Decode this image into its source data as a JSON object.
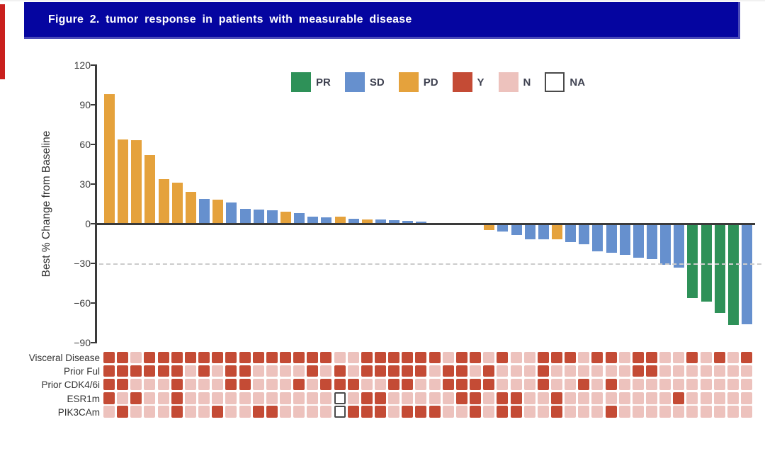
{
  "figure_title": "Figure 2. tumor response in patients with measurable disease",
  "colors": {
    "PR": "#2e9158",
    "SD": "#6690ce",
    "PD": "#e5a23c",
    "Y": "#c44b35",
    "N": "#edc2bd",
    "NA": "#ffffff",
    "na_border": "#4a4a4a",
    "title_bar": "#0505a0",
    "red_strip": "#c9201d"
  },
  "legend": {
    "items": [
      {
        "label": "PR",
        "color_key": "PR"
      },
      {
        "label": "SD",
        "color_key": "SD"
      },
      {
        "label": "PD",
        "color_key": "PD"
      },
      {
        "label": "Y",
        "color_key": "Y"
      },
      {
        "label": "N",
        "color_key": "N"
      },
      {
        "label": "NA",
        "color_key": "NA"
      }
    ]
  },
  "chart_data": {
    "type": "bar",
    "title": "Figure 2. tumor response in patients with measurable disease",
    "xlabel": "",
    "ylabel": "Best % Change from Baseline",
    "ylim": [
      -90,
      120
    ],
    "yticks": [
      120,
      90,
      60,
      30,
      0,
      -30,
      -60,
      -90
    ],
    "ytick_labels": [
      "120",
      "90",
      "60",
      "30",
      "0",
      "−30",
      "−60",
      "−90"
    ],
    "grid": false,
    "legend_position": "top-center",
    "reference_lines": {
      "solid_at": 0,
      "dashed_at": -30
    },
    "bars": {
      "count": 48,
      "values": [
        98,
        64,
        63,
        52,
        34,
        31,
        24,
        18.5,
        18,
        16,
        11,
        10.5,
        10,
        9,
        8,
        5.5,
        5,
        5.5,
        3.5,
        3,
        3,
        2.5,
        2,
        1.5,
        0,
        0,
        0,
        0,
        -4,
        -5,
        -7.5,
        -11,
        -11,
        -11,
        -13,
        -14.5,
        -20,
        -21,
        -22.5,
        -25,
        -26,
        -30.5,
        -32.5,
        -55.5,
        -58,
        -66.5,
        -76,
        -75
      ],
      "responses": [
        "PD",
        "PD",
        "PD",
        "PD",
        "PD",
        "PD",
        "PD",
        "SD",
        "PD",
        "SD",
        "SD",
        "SD",
        "SD",
        "PD",
        "SD",
        "SD",
        "SD",
        "PD",
        "SD",
        "PD",
        "SD",
        "SD",
        "SD",
        "SD",
        "SD",
        "SD",
        "SD",
        "SD",
        "PD",
        "SD",
        "SD",
        "SD",
        "SD",
        "PD",
        "SD",
        "SD",
        "SD",
        "SD",
        "SD",
        "SD",
        "SD",
        "SD",
        "SD",
        "PR",
        "PR",
        "PR",
        "PR",
        "SD"
      ]
    },
    "heatmap": {
      "cell_values_meaning": {
        "Y": "yes",
        "N": "no",
        "NA": "not available"
      },
      "rows": [
        {
          "label": "Visceral Disease",
          "values": [
            "Y",
            "Y",
            "N",
            "Y",
            "Y",
            "Y",
            "Y",
            "Y",
            "Y",
            "Y",
            "Y",
            "Y",
            "Y",
            "Y",
            "Y",
            "Y",
            "Y",
            "N",
            "N",
            "Y",
            "Y",
            "Y",
            "Y",
            "Y",
            "Y",
            "N",
            "Y",
            "Y",
            "N",
            "Y",
            "N",
            "N",
            "Y",
            "Y",
            "Y",
            "N",
            "Y",
            "Y",
            "N",
            "Y",
            "Y",
            "N",
            "N",
            "Y",
            "N",
            "Y",
            "N",
            "Y"
          ]
        },
        {
          "label": "Prior Ful",
          "values": [
            "Y",
            "Y",
            "Y",
            "Y",
            "Y",
            "Y",
            "N",
            "Y",
            "N",
            "Y",
            "Y",
            "N",
            "N",
            "N",
            "N",
            "Y",
            "N",
            "Y",
            "N",
            "Y",
            "Y",
            "Y",
            "Y",
            "Y",
            "N",
            "Y",
            "Y",
            "N",
            "Y",
            "N",
            "N",
            "N",
            "Y",
            "N",
            "N",
            "N",
            "N",
            "N",
            "N",
            "Y",
            "Y",
            "N",
            "N",
            "N",
            "N",
            "N",
            "N",
            "N"
          ]
        },
        {
          "label": "Prior CDK4/6i",
          "values": [
            "Y",
            "Y",
            "N",
            "N",
            "N",
            "Y",
            "N",
            "N",
            "N",
            "Y",
            "Y",
            "N",
            "N",
            "N",
            "Y",
            "N",
            "Y",
            "Y",
            "Y",
            "N",
            "N",
            "Y",
            "Y",
            "N",
            "N",
            "Y",
            "Y",
            "Y",
            "Y",
            "N",
            "N",
            "N",
            "Y",
            "N",
            "N",
            "Y",
            "N",
            "Y",
            "N",
            "N",
            "N",
            "N",
            "N",
            "N",
            "N",
            "N",
            "N",
            "N"
          ]
        },
        {
          "label": "ESR1m",
          "values": [
            "Y",
            "N",
            "Y",
            "N",
            "N",
            "Y",
            "N",
            "N",
            "N",
            "N",
            "N",
            "N",
            "N",
            "N",
            "N",
            "N",
            "N",
            "NA",
            "N",
            "Y",
            "Y",
            "N",
            "N",
            "N",
            "N",
            "N",
            "Y",
            "Y",
            "N",
            "Y",
            "Y",
            "N",
            "N",
            "Y",
            "N",
            "N",
            "N",
            "N",
            "N",
            "N",
            "N",
            "N",
            "Y",
            "N",
            "N",
            "N",
            "N",
            "N"
          ]
        },
        {
          "label": "PIK3CAm",
          "values": [
            "N",
            "Y",
            "N",
            "N",
            "N",
            "Y",
            "N",
            "N",
            "Y",
            "N",
            "N",
            "Y",
            "Y",
            "N",
            "N",
            "N",
            "N",
            "NA",
            "Y",
            "Y",
            "Y",
            "N",
            "Y",
            "Y",
            "Y",
            "N",
            "N",
            "Y",
            "N",
            "Y",
            "Y",
            "N",
            "N",
            "Y",
            "N",
            "N",
            "N",
            "Y",
            "N",
            "N",
            "N",
            "N",
            "N",
            "N",
            "N",
            "N",
            "N",
            "N"
          ]
        }
      ]
    }
  }
}
